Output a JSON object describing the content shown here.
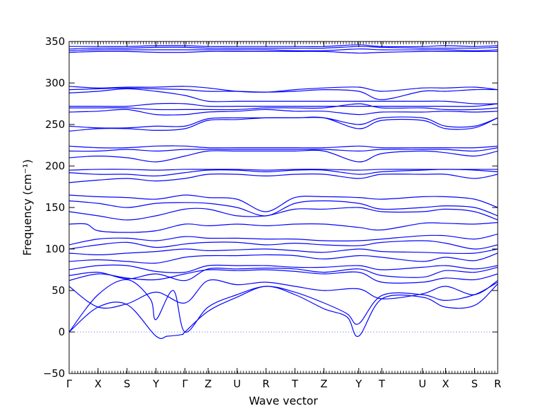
{
  "chart_data": {
    "type": "line",
    "title": "",
    "xlabel": "Wave vector",
    "ylabel": "Frequency (cm⁻¹)",
    "ylim": [
      -50,
      350
    ],
    "yticks": [
      -50,
      0,
      50,
      100,
      150,
      200,
      250,
      300,
      350
    ],
    "grid": false,
    "line_color": "#0000ff",
    "zero_line_color": "#6666ff",
    "x_labels": [
      {
        "label": "Γ",
        "x": 0.0
      },
      {
        "label": "X",
        "x": 0.5
      },
      {
        "label": "S",
        "x": 1.0
      },
      {
        "label": "Y",
        "x": 1.5
      },
      {
        "label": "Γ",
        "x": 2.0
      },
      {
        "label": "Z",
        "x": 2.4
      },
      {
        "label": "U",
        "x": 2.9
      },
      {
        "label": "R",
        "x": 3.4
      },
      {
        "label": "T",
        "x": 3.9
      },
      {
        "label": "Z",
        "x": 4.4
      },
      {
        "label": "Y",
        "x": 5.0
      },
      {
        "label": "T",
        "x": 5.4
      },
      {
        "label": "U",
        "x": 6.1
      },
      {
        "label": "X",
        "x": 6.5
      },
      {
        "label": "S",
        "x": 7.0
      },
      {
        "label": "R",
        "x": 7.4
      }
    ],
    "xlim": [
      0.0,
      7.4
    ],
    "series": [
      {
        "x": [
          0,
          0.5,
          1.0,
          1.5,
          1.7,
          1.95,
          2.0,
          2.4,
          2.9,
          3.4,
          3.9,
          4.4,
          4.8,
          5.0,
          5.4,
          6.1,
          6.5,
          7.0,
          7.4
        ],
        "y": [
          0,
          30,
          33,
          -5,
          -5,
          -3,
          0,
          25,
          42,
          55,
          45,
          28,
          18,
          -5,
          40,
          42,
          30,
          32,
          58
        ]
      },
      {
        "x": [
          0,
          0.5,
          1.0,
          1.4,
          1.5,
          1.8,
          2.0,
          2.4,
          2.9,
          3.4,
          3.9,
          4.4,
          4.8,
          5.0,
          5.4,
          6.1,
          6.5,
          7.0,
          7.4
        ],
        "y": [
          0,
          45,
          63,
          40,
          15,
          50,
          0,
          30,
          45,
          55,
          48,
          35,
          22,
          10,
          44,
          45,
          38,
          45,
          60
        ]
      },
      {
        "x": [
          0,
          0.5,
          1.0,
          1.5,
          2.0,
          2.4,
          2.9,
          3.4,
          3.9,
          4.4,
          5.0,
          5.4,
          6.1,
          6.5,
          7.0,
          7.4
        ],
        "y": [
          55,
          30,
          34,
          48,
          35,
          62,
          57,
          60,
          55,
          50,
          52,
          40,
          46,
          55,
          45,
          62
        ]
      },
      {
        "x": [
          0,
          0.5,
          1.0,
          1.5,
          2.0,
          2.4,
          2.9,
          3.4,
          3.9,
          4.4,
          5.0,
          5.4,
          6.1,
          6.5,
          7.0,
          7.4
        ],
        "y": [
          62,
          70,
          65,
          63,
          70,
          75,
          74,
          75,
          73,
          70,
          72,
          60,
          60,
          65,
          63,
          70
        ]
      },
      {
        "x": [
          0,
          0.5,
          1.0,
          1.5,
          2.0,
          2.4,
          2.9,
          3.4,
          3.9,
          4.4,
          5.0,
          5.4,
          6.1,
          6.5,
          7.0,
          7.4
        ],
        "y": [
          68,
          72,
          64,
          70,
          62,
          76,
          76,
          77,
          76,
          72,
          76,
          68,
          66,
          74,
          72,
          78
        ]
      },
      {
        "x": [
          0,
          0.5,
          1.0,
          1.5,
          2.0,
          2.4,
          2.9,
          3.4,
          3.9,
          4.4,
          5.0,
          5.4,
          6.1,
          6.5,
          7.0,
          7.4
        ],
        "y": [
          75,
          80,
          80,
          73,
          72,
          80,
          80,
          80,
          78,
          78,
          80,
          75,
          78,
          80,
          76,
          80
        ]
      },
      {
        "x": [
          0,
          0.5,
          1.0,
          1.5,
          2.0,
          2.4,
          2.9,
          3.4,
          3.9,
          4.4,
          5.0,
          5.4,
          6.1,
          6.5,
          7.0,
          7.4
        ],
        "y": [
          85,
          87,
          85,
          83,
          90,
          92,
          92,
          93,
          92,
          88,
          92,
          90,
          85,
          90,
          86,
          95
        ]
      },
      {
        "x": [
          0,
          0.5,
          1.0,
          1.5,
          2.0,
          2.4,
          2.9,
          3.4,
          3.9,
          4.4,
          5.0,
          5.4,
          6.1,
          6.5,
          7.0,
          7.4
        ],
        "y": [
          95,
          93,
          95,
          97,
          100,
          98,
          99,
          100,
          98,
          96,
          100,
          97,
          96,
          95,
          95,
          100
        ]
      },
      {
        "x": [
          0,
          0.5,
          1.0,
          1.5,
          2.0,
          2.4,
          2.9,
          3.4,
          3.9,
          4.4,
          5.0,
          5.4,
          6.1,
          6.5,
          7.0,
          7.4
        ],
        "y": [
          100,
          105,
          108,
          102,
          106,
          108,
          108,
          105,
          107,
          105,
          104,
          108,
          110,
          107,
          100,
          105
        ]
      },
      {
        "x": [
          0,
          0.5,
          1.0,
          1.5,
          2.0,
          2.4,
          2.9,
          3.4,
          3.9,
          4.4,
          5.0,
          5.4,
          6.1,
          6.5,
          7.0,
          7.4
        ],
        "y": [
          105,
          112,
          113,
          110,
          115,
          113,
          113,
          112,
          112,
          110,
          110,
          112,
          116,
          116,
          112,
          118
        ]
      },
      {
        "x": [
          0,
          0.3,
          0.5,
          1.0,
          1.5,
          2.0,
          2.4,
          2.9,
          3.4,
          3.9,
          4.4,
          5.0,
          5.4,
          6.1,
          6.5,
          7.0,
          7.4
        ],
        "y": [
          130,
          130,
          122,
          120,
          122,
          130,
          128,
          130,
          128,
          130,
          130,
          126,
          123,
          131,
          131,
          130,
          132
        ]
      },
      {
        "x": [
          0,
          0.5,
          1.0,
          1.5,
          2.0,
          2.4,
          2.9,
          3.4,
          3.9,
          4.4,
          5.0,
          5.4,
          6.1,
          6.5,
          7.0,
          7.4
        ],
        "y": [
          145,
          140,
          135,
          140,
          148,
          148,
          140,
          140,
          148,
          148,
          150,
          145,
          145,
          148,
          145,
          135
        ]
      },
      {
        "x": [
          0,
          0.5,
          1.0,
          1.5,
          2.0,
          2.4,
          2.9,
          3.4,
          3.9,
          4.4,
          5.0,
          5.4,
          6.1,
          6.5,
          7.0,
          7.4
        ],
        "y": [
          158,
          155,
          150,
          155,
          156,
          155,
          150,
          140,
          155,
          158,
          155,
          148,
          150,
          152,
          150,
          140
        ]
      },
      {
        "x": [
          0,
          0.5,
          1.0,
          1.5,
          2.0,
          2.4,
          2.9,
          3.4,
          3.9,
          4.4,
          5.0,
          5.4,
          6.1,
          6.5,
          7.0,
          7.4
        ],
        "y": [
          165,
          163,
          162,
          160,
          165,
          162,
          160,
          145,
          162,
          163,
          162,
          160,
          163,
          163,
          160,
          150
        ]
      },
      {
        "x": [
          0,
          0.5,
          1.0,
          1.5,
          2.0,
          2.4,
          2.9,
          3.4,
          3.9,
          4.4,
          5.0,
          5.4,
          6.1,
          6.5,
          7.0,
          7.4
        ],
        "y": [
          180,
          183,
          185,
          182,
          185,
          190,
          190,
          188,
          190,
          190,
          185,
          190,
          190,
          190,
          185,
          190
        ]
      },
      {
        "x": [
          0,
          0.5,
          1.0,
          1.5,
          2.0,
          2.4,
          2.9,
          3.4,
          3.9,
          4.4,
          5.0,
          5.4,
          6.1,
          6.5,
          7.0,
          7.4
        ],
        "y": [
          192,
          190,
          190,
          188,
          192,
          195,
          195,
          193,
          195,
          195,
          190,
          193,
          195,
          196,
          195,
          193
        ]
      },
      {
        "x": [
          0,
          0.5,
          1.0,
          1.5,
          2.0,
          2.4,
          2.9,
          3.4,
          3.9,
          4.4,
          5.0,
          5.4,
          6.1,
          6.5,
          7.0,
          7.4
        ],
        "y": [
          195,
          196,
          196,
          195,
          196,
          196,
          196,
          195,
          196,
          196,
          195,
          196,
          196,
          196,
          196,
          196
        ]
      },
      {
        "x": [
          0,
          0.5,
          1.0,
          1.5,
          2.0,
          2.4,
          2.9,
          3.4,
          3.9,
          4.4,
          5.0,
          5.4,
          6.1,
          6.5,
          7.0,
          7.4
        ],
        "y": [
          210,
          212,
          210,
          205,
          212,
          218,
          218,
          218,
          218,
          218,
          205,
          215,
          218,
          216,
          212,
          218
        ]
      },
      {
        "x": [
          0,
          0.5,
          1.0,
          1.5,
          2.0,
          2.4,
          2.9,
          3.4,
          3.9,
          4.4,
          5.0,
          5.4,
          6.1,
          6.5,
          7.0,
          7.4
        ],
        "y": [
          218,
          218,
          220,
          218,
          220,
          220,
          220,
          220,
          220,
          220,
          218,
          220,
          220,
          220,
          218,
          222
        ]
      },
      {
        "x": [
          0,
          0.5,
          1.0,
          1.5,
          2.0,
          2.4,
          2.9,
          3.4,
          3.9,
          4.4,
          5.0,
          5.4,
          6.1,
          6.5,
          7.0,
          7.4
        ],
        "y": [
          224,
          222,
          222,
          224,
          224,
          222,
          222,
          222,
          222,
          222,
          224,
          222,
          222,
          222,
          222,
          224
        ]
      },
      {
        "x": [
          0,
          0.5,
          1.0,
          1.5,
          2.0,
          2.4,
          2.9,
          3.4,
          3.9,
          4.4,
          5.0,
          5.4,
          6.1,
          6.5,
          7.0,
          7.4
        ],
        "y": [
          242,
          245,
          245,
          243,
          245,
          255,
          256,
          258,
          258,
          258,
          245,
          255,
          255,
          245,
          246,
          258
        ]
      },
      {
        "x": [
          0,
          0.5,
          1.0,
          1.5,
          2.0,
          2.4,
          2.9,
          3.4,
          3.9,
          4.4,
          5.0,
          5.4,
          6.1,
          6.5,
          7.0,
          7.4
        ],
        "y": [
          248,
          246,
          246,
          248,
          248,
          257,
          258,
          258,
          258,
          258,
          250,
          258,
          258,
          248,
          248,
          258
        ]
      },
      {
        "x": [
          0,
          0.5,
          1.0,
          1.5,
          2.0,
          2.4,
          2.9,
          3.4,
          3.9,
          4.4,
          5.0,
          5.4,
          6.1,
          6.5,
          7.0,
          7.4
        ],
        "y": [
          265,
          266,
          268,
          262,
          262,
          265,
          266,
          268,
          266,
          266,
          262,
          265,
          265,
          266,
          265,
          266
        ]
      },
      {
        "x": [
          0,
          0.5,
          1.0,
          1.5,
          2.0,
          2.4,
          2.9,
          3.4,
          3.9,
          4.4,
          5.0,
          5.4,
          6.1,
          6.5,
          7.0,
          7.4
        ],
        "y": [
          270,
          270,
          270,
          268,
          268,
          268,
          268,
          270,
          270,
          270,
          275,
          270,
          270,
          268,
          268,
          270
        ]
      },
      {
        "x": [
          0,
          0.5,
          1.0,
          1.5,
          2.0,
          2.4,
          2.9,
          3.4,
          3.9,
          4.4,
          5.0,
          5.4,
          6.1,
          6.5,
          7.0,
          7.4
        ],
        "y": [
          272,
          272,
          272,
          275,
          275,
          272,
          272,
          272,
          272,
          272,
          272,
          272,
          272,
          272,
          272,
          275
        ]
      },
      {
        "x": [
          0,
          0.5,
          1.0,
          1.5,
          2.0,
          2.4,
          2.9,
          3.4,
          3.9,
          4.4,
          5.0,
          5.4,
          6.1,
          6.5,
          7.0,
          7.4
        ],
        "y": [
          288,
          290,
          293,
          290,
          285,
          278,
          278,
          278,
          278,
          278,
          278,
          278,
          278,
          278,
          275,
          275
        ]
      },
      {
        "x": [
          0,
          0.5,
          1.0,
          1.5,
          2.0,
          2.4,
          2.9,
          3.4,
          3.9,
          4.4,
          5.0,
          5.4,
          6.1,
          6.5,
          7.0,
          7.4
        ],
        "y": [
          292,
          293,
          294,
          293,
          292,
          290,
          290,
          289,
          290,
          292,
          290,
          280,
          290,
          290,
          292,
          292
        ]
      },
      {
        "x": [
          0,
          0.5,
          1.0,
          1.5,
          2.0,
          2.4,
          2.9,
          3.4,
          3.9,
          4.4,
          5.0,
          5.4,
          6.1,
          6.5,
          7.0,
          7.4
        ],
        "y": [
          296,
          294,
          295,
          295,
          296,
          294,
          290,
          289,
          292,
          294,
          295,
          290,
          294,
          294,
          295,
          292
        ]
      },
      {
        "x": [
          0,
          0.5,
          1.0,
          1.5,
          2.0,
          2.4,
          2.9,
          3.4,
          3.9,
          4.4,
          5.0,
          5.4,
          6.1,
          6.5,
          7.0,
          7.4
        ],
        "y": [
          337,
          338,
          338,
          337,
          337,
          338,
          338,
          338,
          338,
          338,
          336,
          337,
          338,
          338,
          338,
          338
        ]
      },
      {
        "x": [
          0,
          0.5,
          1.0,
          1.5,
          2.0,
          2.4,
          2.9,
          3.4,
          3.9,
          4.4,
          5.0,
          5.4,
          6.1,
          6.5,
          7.0,
          7.4
        ],
        "y": [
          339,
          340,
          340,
          340,
          340,
          340,
          340,
          340,
          339,
          339,
          341,
          340,
          340,
          340,
          339,
          340
        ]
      },
      {
        "x": [
          0,
          0.5,
          1.0,
          1.5,
          2.0,
          2.4,
          2.9,
          3.4,
          3.9,
          4.4,
          5.0,
          5.4,
          6.1,
          6.5,
          7.0,
          7.4
        ],
        "y": [
          341,
          342,
          342,
          343,
          343,
          342,
          342,
          342,
          342,
          342,
          344,
          343,
          342,
          342,
          342,
          343
        ]
      },
      {
        "x": [
          0,
          0.5,
          1.0,
          1.5,
          2.0,
          2.4,
          2.9,
          3.4,
          3.9,
          4.4,
          5.0,
          5.4,
          6.1,
          6.5,
          7.0,
          7.4
        ],
        "y": [
          344,
          344,
          344,
          345,
          345,
          344,
          344,
          344,
          344,
          344,
          346,
          344,
          344,
          345,
          344,
          345
        ]
      }
    ]
  }
}
